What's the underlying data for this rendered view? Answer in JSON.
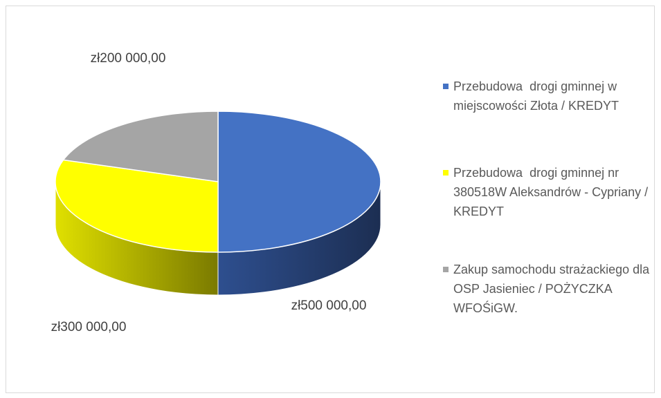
{
  "chart_data": {
    "type": "pie3d",
    "categories": [
      "Przebudowa  drogi gminnej w miejscowości Złota / KREDYT",
      "Przebudowa  drogi gminnej nr 380518W Aleksandrów - Cypriany / KREDYT",
      "Zakup samochodu strażackiego dla OSP Jasieniec / POŻYCZKA WFOŚiGW."
    ],
    "values": [
      500000,
      300000,
      200000
    ],
    "value_labels": [
      "zł500 000,00",
      "zł300 000,00",
      "zł200 000,00"
    ],
    "colors": [
      "#4472c4",
      "#ffff00",
      "#a5a5a5"
    ],
    "legend": "right"
  }
}
